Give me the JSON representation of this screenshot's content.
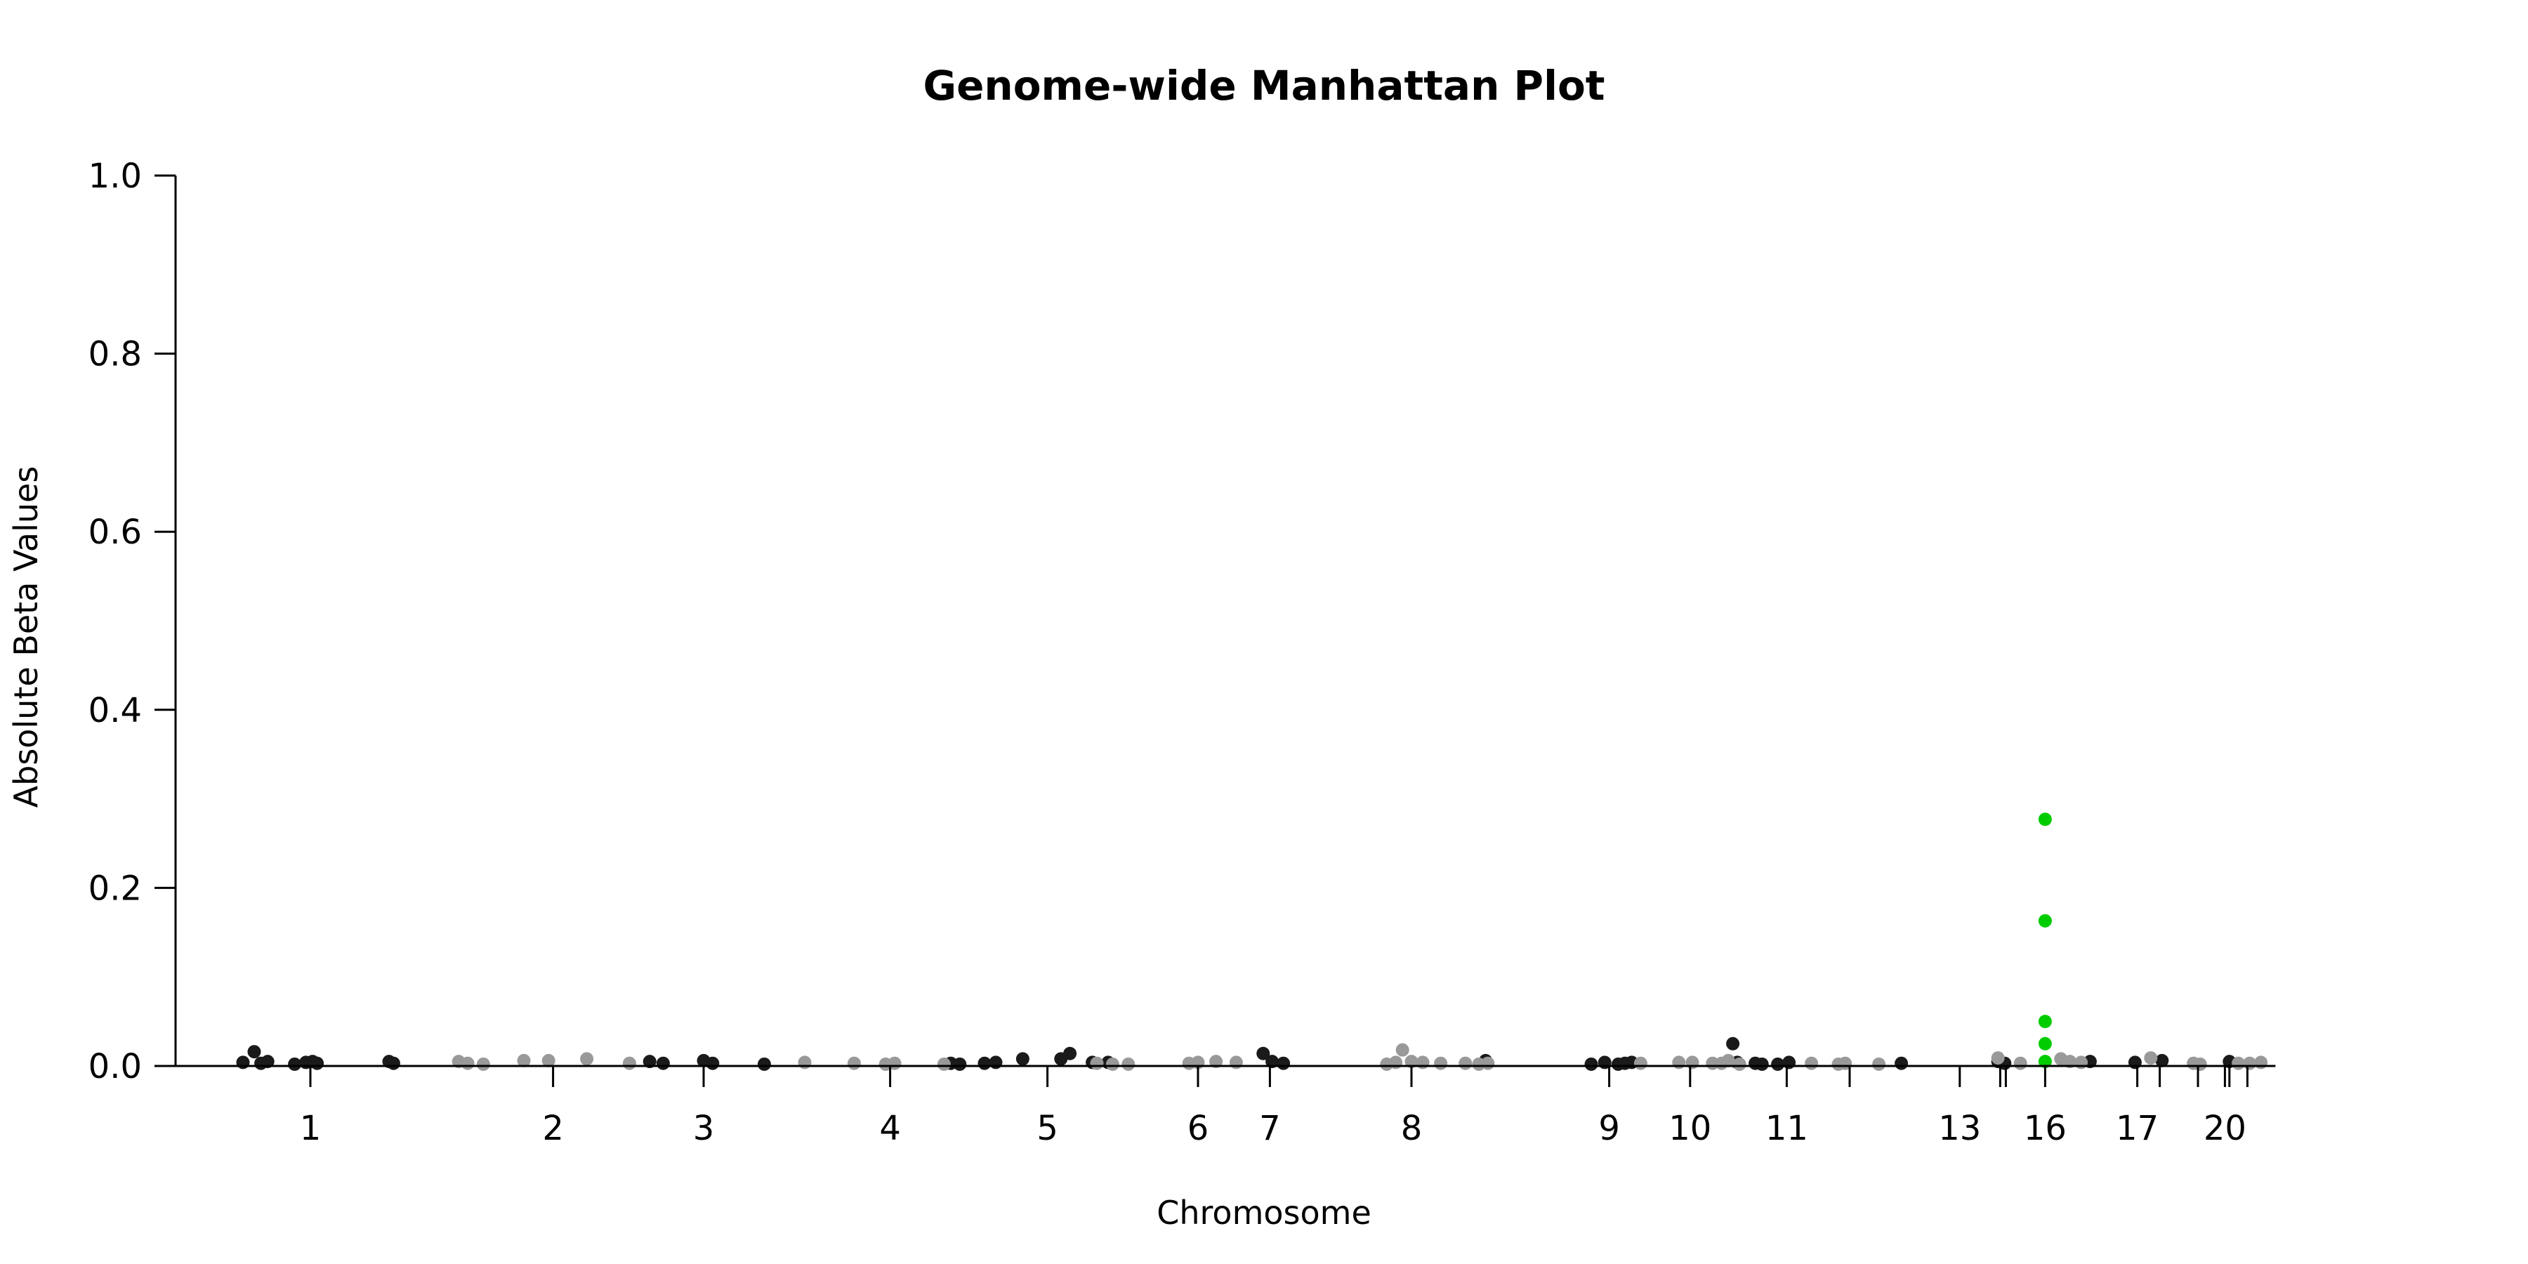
{
  "chart_data": {
    "type": "scatter",
    "title": "Genome-wide Manhattan Plot",
    "xlabel": "Chromosome",
    "ylabel": "Absolute Beta Values",
    "ylim": [
      0,
      1
    ],
    "yticks": [
      "0.0",
      "0.2",
      "0.4",
      "0.6",
      "0.8",
      "1.0"
    ],
    "xlim": [
      0,
      100
    ],
    "xticks": [
      {
        "x": 6.0,
        "label": "1"
      },
      {
        "x": 16.8,
        "label": "2"
      },
      {
        "x": 23.5,
        "label": "3"
      },
      {
        "x": 31.8,
        "label": "4"
      },
      {
        "x": 38.8,
        "label": "5"
      },
      {
        "x": 45.5,
        "label": "6"
      },
      {
        "x": 48.7,
        "label": "7"
      },
      {
        "x": 55.0,
        "label": "8"
      },
      {
        "x": 63.8,
        "label": "9"
      },
      {
        "x": 67.4,
        "label": "10"
      },
      {
        "x": 71.7,
        "label": "11"
      },
      {
        "x": 74.5,
        "label": ""
      },
      {
        "x": 79.4,
        "label": "13"
      },
      {
        "x": 81.2,
        "label": ""
      },
      {
        "x": 81.45,
        "label": ""
      },
      {
        "x": 83.2,
        "label": "16"
      },
      {
        "x": 87.3,
        "label": "17"
      },
      {
        "x": 88.3,
        "label": ""
      },
      {
        "x": 90.0,
        "label": ""
      },
      {
        "x": 91.2,
        "label": "20"
      },
      {
        "x": 91.4,
        "label": ""
      },
      {
        "x": 92.2,
        "label": ""
      }
    ],
    "colors": {
      "dark": "#1a1a1a",
      "light": "#999999",
      "highlight": "#00cc00"
    },
    "series": [
      {
        "color_key": "dark",
        "points": [
          [
            3.0,
            0.004
          ],
          [
            3.5,
            0.016
          ],
          [
            3.8,
            0.003
          ],
          [
            4.1,
            0.005
          ],
          [
            5.3,
            0.002
          ],
          [
            5.8,
            0.004
          ],
          [
            6.1,
            0.005
          ],
          [
            6.3,
            0.003
          ],
          [
            9.5,
            0.005
          ],
          [
            9.7,
            0.003
          ],
          [
            21.1,
            0.005
          ],
          [
            21.7,
            0.003
          ],
          [
            23.5,
            0.006
          ],
          [
            23.9,
            0.003
          ],
          [
            26.2,
            0.002
          ],
          [
            34.5,
            0.003
          ],
          [
            34.9,
            0.002
          ],
          [
            36.0,
            0.003
          ],
          [
            36.5,
            0.004
          ],
          [
            37.7,
            0.008
          ],
          [
            39.4,
            0.008
          ],
          [
            39.8,
            0.014
          ],
          [
            40.8,
            0.004
          ],
          [
            41.5,
            0.004
          ],
          [
            48.4,
            0.014
          ],
          [
            48.8,
            0.005
          ],
          [
            49.3,
            0.003
          ],
          [
            58.3,
            0.006
          ],
          [
            63.0,
            0.002
          ],
          [
            63.6,
            0.004
          ],
          [
            64.2,
            0.002
          ],
          [
            64.5,
            0.003
          ],
          [
            64.8,
            0.004
          ],
          [
            69.3,
            0.025
          ],
          [
            69.5,
            0.004
          ],
          [
            70.3,
            0.003
          ],
          [
            70.6,
            0.002
          ],
          [
            71.3,
            0.002
          ],
          [
            71.8,
            0.004
          ],
          [
            76.8,
            0.003
          ],
          [
            81.1,
            0.005
          ],
          [
            81.4,
            0.003
          ],
          [
            85.2,
            0.005
          ],
          [
            87.2,
            0.004
          ],
          [
            88.4,
            0.006
          ],
          [
            91.4,
            0.005
          ]
        ]
      },
      {
        "color_key": "light",
        "points": [
          [
            12.6,
            0.005
          ],
          [
            13.0,
            0.003
          ],
          [
            13.7,
            0.002
          ],
          [
            15.5,
            0.006
          ],
          [
            16.6,
            0.006
          ],
          [
            18.3,
            0.008
          ],
          [
            20.2,
            0.003
          ],
          [
            28.0,
            0.004
          ],
          [
            30.2,
            0.003
          ],
          [
            31.6,
            0.002
          ],
          [
            32.0,
            0.003
          ],
          [
            34.2,
            0.002
          ],
          [
            41.0,
            0.003
          ],
          [
            41.7,
            0.002
          ],
          [
            42.4,
            0.002
          ],
          [
            45.1,
            0.003
          ],
          [
            45.5,
            0.004
          ],
          [
            46.3,
            0.005
          ],
          [
            47.2,
            0.004
          ],
          [
            53.9,
            0.002
          ],
          [
            54.3,
            0.004
          ],
          [
            54.6,
            0.018
          ],
          [
            55.0,
            0.005
          ],
          [
            55.5,
            0.004
          ],
          [
            56.3,
            0.003
          ],
          [
            57.4,
            0.003
          ],
          [
            58.0,
            0.002
          ],
          [
            58.4,
            0.003
          ],
          [
            65.2,
            0.003
          ],
          [
            66.9,
            0.004
          ],
          [
            67.5,
            0.004
          ],
          [
            68.4,
            0.003
          ],
          [
            68.8,
            0.003
          ],
          [
            69.1,
            0.006
          ],
          [
            69.6,
            0.002
          ],
          [
            72.8,
            0.003
          ],
          [
            74.0,
            0.002
          ],
          [
            74.3,
            0.003
          ],
          [
            75.8,
            0.002
          ],
          [
            81.1,
            0.009
          ],
          [
            82.1,
            0.003
          ],
          [
            83.9,
            0.008
          ],
          [
            84.3,
            0.005
          ],
          [
            84.8,
            0.004
          ],
          [
            87.9,
            0.009
          ],
          [
            89.8,
            0.003
          ],
          [
            90.1,
            0.002
          ],
          [
            91.8,
            0.003
          ],
          [
            92.3,
            0.003
          ],
          [
            92.8,
            0.004
          ]
        ]
      },
      {
        "color_key": "highlight",
        "points": [
          [
            83.2,
            0.277
          ],
          [
            83.2,
            0.163
          ],
          [
            83.2,
            0.05
          ],
          [
            83.2,
            0.025
          ],
          [
            83.2,
            0.005
          ]
        ]
      }
    ]
  }
}
